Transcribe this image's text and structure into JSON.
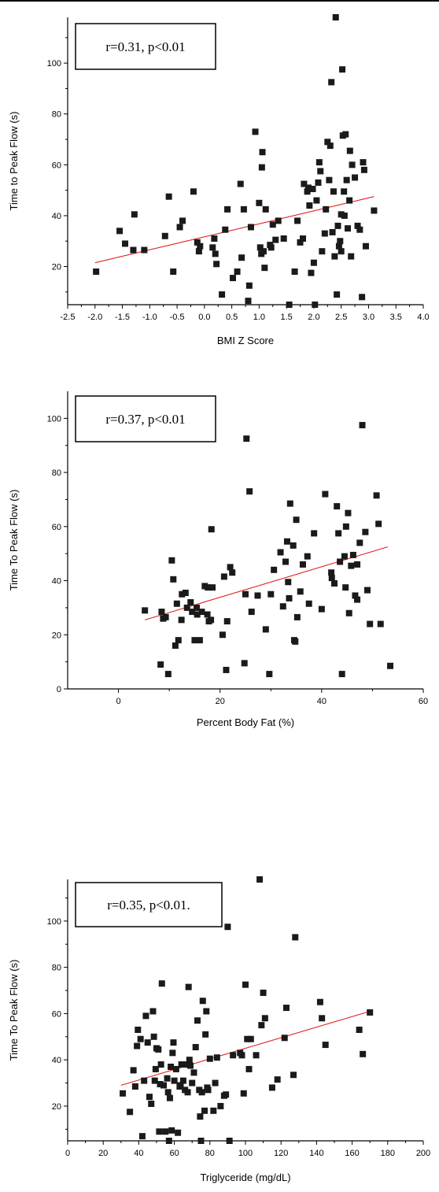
{
  "chart_data": [
    {
      "type": "scatter",
      "title": "",
      "xlabel": "BMI Z Score",
      "ylabel": "Time to Peak Flow (s)",
      "annotation": "r=0.31, p<0.01",
      "xlim": [
        -2.5,
        4.0
      ],
      "ylim": [
        5,
        118
      ],
      "xticks": [
        "-2.5",
        "-2.0",
        "-1.5",
        "-1.0",
        "-0.5",
        "0.0",
        "0.5",
        "1.0",
        "1.5",
        "2.0",
        "2.5",
        "3.0",
        "3.5",
        "4.0"
      ],
      "yticks": [
        "20",
        "40",
        "60",
        "80",
        "100"
      ],
      "trend": [
        [
          -2.0,
          21.5
        ],
        [
          3.1,
          47.5
        ]
      ],
      "points": [
        [
          -1.98,
          18
        ],
        [
          -1.55,
          34
        ],
        [
          -1.45,
          29
        ],
        [
          -1.3,
          26.5
        ],
        [
          -1.28,
          40.5
        ],
        [
          -1.1,
          26.5
        ],
        [
          -0.72,
          32
        ],
        [
          -0.65,
          47.5
        ],
        [
          -0.57,
          18
        ],
        [
          -0.45,
          35.5
        ],
        [
          -0.4,
          38
        ],
        [
          -0.2,
          49.5
        ],
        [
          -0.13,
          29.5
        ],
        [
          -0.1,
          26
        ],
        [
          -0.08,
          28
        ],
        [
          0.15,
          27.5
        ],
        [
          0.18,
          31
        ],
        [
          0.2,
          25
        ],
        [
          0.22,
          21
        ],
        [
          0.32,
          9
        ],
        [
          0.38,
          34.5
        ],
        [
          0.42,
          42.5
        ],
        [
          0.52,
          15.5
        ],
        [
          0.6,
          18
        ],
        [
          0.66,
          52.5
        ],
        [
          0.68,
          23.5
        ],
        [
          0.72,
          42.5
        ],
        [
          0.8,
          6.5
        ],
        [
          0.82,
          12.5
        ],
        [
          0.85,
          35.5
        ],
        [
          0.93,
          73
        ],
        [
          1.0,
          45
        ],
        [
          1.02,
          27.5
        ],
        [
          1.04,
          25
        ],
        [
          1.05,
          59
        ],
        [
          1.06,
          65
        ],
        [
          1.08,
          26
        ],
        [
          1.1,
          19.5
        ],
        [
          1.12,
          42.5
        ],
        [
          1.2,
          28.5
        ],
        [
          1.22,
          27.5
        ],
        [
          1.25,
          36.5
        ],
        [
          1.3,
          30.5
        ],
        [
          1.35,
          38
        ],
        [
          1.45,
          31
        ],
        [
          1.55,
          5
        ],
        [
          1.65,
          18
        ],
        [
          1.7,
          38
        ],
        [
          1.75,
          29.5
        ],
        [
          1.8,
          31
        ],
        [
          1.82,
          52.5
        ],
        [
          1.88,
          49.5
        ],
        [
          1.9,
          51
        ],
        [
          1.92,
          44
        ],
        [
          1.95,
          17.5
        ],
        [
          1.98,
          50.5
        ],
        [
          2.0,
          21.5
        ],
        [
          2.02,
          5
        ],
        [
          2.05,
          46
        ],
        [
          2.08,
          53
        ],
        [
          2.1,
          61
        ],
        [
          2.12,
          57.5
        ],
        [
          2.15,
          26
        ],
        [
          2.2,
          33
        ],
        [
          2.22,
          42.5
        ],
        [
          2.25,
          69
        ],
        [
          2.28,
          54
        ],
        [
          2.3,
          67.5
        ],
        [
          2.32,
          92.5
        ],
        [
          2.34,
          33.5
        ],
        [
          2.36,
          49.5
        ],
        [
          2.38,
          24
        ],
        [
          2.4,
          118
        ],
        [
          2.42,
          9
        ],
        [
          2.44,
          36
        ],
        [
          2.46,
          28
        ],
        [
          2.48,
          30
        ],
        [
          2.5,
          26
        ],
        [
          2.5,
          40.5
        ],
        [
          2.52,
          97.5
        ],
        [
          2.53,
          71.5
        ],
        [
          2.55,
          49.5
        ],
        [
          2.56,
          40
        ],
        [
          2.58,
          72
        ],
        [
          2.6,
          54
        ],
        [
          2.62,
          35
        ],
        [
          2.65,
          46
        ],
        [
          2.66,
          65.5
        ],
        [
          2.68,
          24
        ],
        [
          2.7,
          60
        ],
        [
          2.75,
          55
        ],
        [
          2.8,
          36
        ],
        [
          2.84,
          34.5
        ],
        [
          2.88,
          8
        ],
        [
          2.9,
          61
        ],
        [
          2.92,
          58
        ],
        [
          2.95,
          28
        ],
        [
          3.1,
          42
        ]
      ]
    },
    {
      "type": "scatter",
      "title": "",
      "xlabel": "Percent Body Fat (%)",
      "ylabel": "Time To Peak Flow (s)",
      "annotation": "r=0.37, p<0.01",
      "xlim": [
        -10,
        60
      ],
      "ylim": [
        0,
        110
      ],
      "xticks": [
        "0",
        "20",
        "40",
        "60"
      ],
      "yticks": [
        "0",
        "20",
        "40",
        "60",
        "80",
        "100"
      ],
      "trend": [
        [
          5.2,
          25.5
        ],
        [
          53,
          52.5
        ]
      ],
      "points": [
        [
          5.2,
          29
        ],
        [
          8.3,
          9
        ],
        [
          8.5,
          28.5
        ],
        [
          8.8,
          26
        ],
        [
          9.3,
          26.5
        ],
        [
          9.8,
          5.5
        ],
        [
          10.5,
          47.5
        ],
        [
          10.8,
          40.5
        ],
        [
          11.2,
          16
        ],
        [
          11.5,
          31.5
        ],
        [
          11.8,
          18
        ],
        [
          12.4,
          25.5
        ],
        [
          12.5,
          35
        ],
        [
          13.2,
          35.5
        ],
        [
          13.5,
          30
        ],
        [
          14.2,
          32
        ],
        [
          14.5,
          28.5
        ],
        [
          15,
          18
        ],
        [
          15.4,
          30
        ],
        [
          15.5,
          27.5
        ],
        [
          16,
          18
        ],
        [
          16.4,
          28.5
        ],
        [
          17,
          38
        ],
        [
          17.5,
          27.5
        ],
        [
          17.8,
          25
        ],
        [
          17.6,
          37.5
        ],
        [
          18.3,
          59
        ],
        [
          18.2,
          25.5
        ],
        [
          18.5,
          37.5
        ],
        [
          20.5,
          20
        ],
        [
          20.8,
          41.5
        ],
        [
          21.2,
          7
        ],
        [
          21.4,
          25
        ],
        [
          22,
          45
        ],
        [
          22.4,
          43
        ],
        [
          24.8,
          9.5
        ],
        [
          25.2,
          92.5
        ],
        [
          25,
          35
        ],
        [
          25.8,
          73
        ],
        [
          26.2,
          28.5
        ],
        [
          27.4,
          34.5
        ],
        [
          29,
          22
        ],
        [
          29.7,
          5.5
        ],
        [
          30,
          35
        ],
        [
          30.6,
          44
        ],
        [
          31.9,
          50.5
        ],
        [
          32.4,
          30.5
        ],
        [
          32.9,
          47
        ],
        [
          33.2,
          54.5
        ],
        [
          33.4,
          39.5
        ],
        [
          33.6,
          33.5
        ],
        [
          33.8,
          68.5
        ],
        [
          34.4,
          53
        ],
        [
          34.6,
          18
        ],
        [
          34.8,
          17.5
        ],
        [
          35,
          62.5
        ],
        [
          35.2,
          26.5
        ],
        [
          35.8,
          36
        ],
        [
          36.3,
          46
        ],
        [
          37.2,
          49
        ],
        [
          37.5,
          31.5
        ],
        [
          38.5,
          57.5
        ],
        [
          40,
          29.5
        ],
        [
          40.7,
          72
        ],
        [
          41.9,
          43
        ],
        [
          42,
          41
        ],
        [
          42.5,
          39
        ],
        [
          43,
          67.5
        ],
        [
          43.3,
          57.5
        ],
        [
          43.6,
          47
        ],
        [
          44,
          5.5
        ],
        [
          44.5,
          49
        ],
        [
          44.7,
          37.5
        ],
        [
          44.8,
          60
        ],
        [
          45.2,
          65
        ],
        [
          45.4,
          28
        ],
        [
          45.8,
          45.5
        ],
        [
          46.2,
          49.5
        ],
        [
          46.6,
          34.5
        ],
        [
          47,
          33
        ],
        [
          47,
          46
        ],
        [
          47.5,
          54
        ],
        [
          48,
          97.5
        ],
        [
          48.6,
          58
        ],
        [
          49,
          36.5
        ],
        [
          49.5,
          24
        ],
        [
          50.8,
          71.5
        ],
        [
          51.2,
          61
        ],
        [
          51.6,
          24
        ],
        [
          53.5,
          8.5
        ]
      ]
    },
    {
      "type": "scatter",
      "title": "",
      "xlabel": "Triglyceride (mg/dL)",
      "ylabel": "Time To Peak Flow (s)",
      "annotation": "r=0.35, p<0.01.",
      "xlim": [
        0,
        200
      ],
      "ylim": [
        5,
        118
      ],
      "xticks": [
        "0",
        "20",
        "40",
        "60",
        "80",
        "100",
        "120",
        "140",
        "160",
        "180",
        "200"
      ],
      "yticks": [
        "20",
        "40",
        "60",
        "80",
        "100"
      ],
      "trend": [
        [
          30,
          29
        ],
        [
          170,
          61
        ]
      ],
      "points": [
        [
          31,
          25.5
        ],
        [
          35,
          17.5
        ],
        [
          37,
          35.5
        ],
        [
          38,
          28.5
        ],
        [
          39,
          46
        ],
        [
          39.5,
          53
        ],
        [
          41,
          49
        ],
        [
          42,
          7
        ],
        [
          43,
          31
        ],
        [
          44,
          59
        ],
        [
          45,
          47.5
        ],
        [
          46,
          24
        ],
        [
          47,
          21
        ],
        [
          48,
          61
        ],
        [
          48.5,
          50
        ],
        [
          49,
          31
        ],
        [
          49.5,
          36
        ],
        [
          50,
          45
        ],
        [
          51,
          44.5
        ],
        [
          51.5,
          9
        ],
        [
          52,
          29.5
        ],
        [
          52.5,
          38
        ],
        [
          53,
          73
        ],
        [
          54,
          29
        ],
        [
          55,
          9
        ],
        [
          56,
          32
        ],
        [
          56.5,
          26
        ],
        [
          57,
          5
        ],
        [
          57.5,
          23.5
        ],
        [
          58,
          37
        ],
        [
          58.5,
          9.5
        ],
        [
          59,
          43
        ],
        [
          59.5,
          47.5
        ],
        [
          60,
          31
        ],
        [
          61,
          36
        ],
        [
          62,
          8.5
        ],
        [
          63,
          28.5
        ],
        [
          63.5,
          29
        ],
        [
          64,
          38
        ],
        [
          65,
          31
        ],
        [
          66,
          27
        ],
        [
          67,
          38
        ],
        [
          67.5,
          26
        ],
        [
          68,
          71.5
        ],
        [
          68.5,
          40
        ],
        [
          69,
          37.5
        ],
        [
          70,
          30
        ],
        [
          71,
          34.5
        ],
        [
          72,
          45.5
        ],
        [
          73,
          57
        ],
        [
          74,
          27
        ],
        [
          74.5,
          15.5
        ],
        [
          75,
          5
        ],
        [
          75.5,
          26
        ],
        [
          76,
          65.5
        ],
        [
          77,
          18
        ],
        [
          77.5,
          51
        ],
        [
          78,
          61
        ],
        [
          78.5,
          28
        ],
        [
          79,
          27
        ],
        [
          80,
          40.5
        ],
        [
          82,
          18
        ],
        [
          83,
          30
        ],
        [
          84,
          41
        ],
        [
          86,
          20
        ],
        [
          88,
          24.5
        ],
        [
          89,
          25
        ],
        [
          90,
          97.5
        ],
        [
          91,
          5
        ],
        [
          93,
          42
        ],
        [
          97,
          43
        ],
        [
          98,
          42
        ],
        [
          99,
          25.5
        ],
        [
          100,
          72.5
        ],
        [
          101,
          49
        ],
        [
          102,
          36
        ],
        [
          103,
          49
        ],
        [
          106,
          42
        ],
        [
          108,
          118
        ],
        [
          109,
          55
        ],
        [
          110,
          69
        ],
        [
          111,
          58
        ],
        [
          115,
          28
        ],
        [
          118,
          31.5
        ],
        [
          122,
          49.5
        ],
        [
          123,
          62.5
        ],
        [
          127,
          33.5
        ],
        [
          128,
          93
        ],
        [
          142,
          65
        ],
        [
          143,
          58
        ],
        [
          145,
          46.5
        ],
        [
          164,
          53
        ],
        [
          166,
          42.5
        ],
        [
          170,
          60.5
        ]
      ]
    }
  ]
}
